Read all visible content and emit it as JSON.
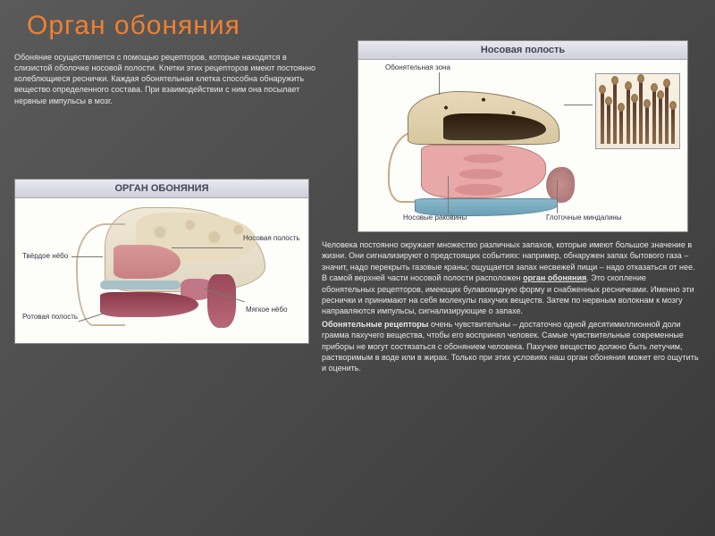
{
  "title": "Орган обоняния",
  "title_color": "#f08030",
  "intro": "Обоняние осуществляется с помощью рецепторов, которые находятся в слизистой оболочке носовой полости. Клетки этих рецепторов имеют постоянно колеблющиеся реснички. Каждая обонятельная клетка способна обнаружить вещество определенного состава. При взаимодействии с ним она посылает нервные импульсы в мозг.",
  "main_diagram": {
    "title": "Носовая полость",
    "labels": {
      "olfactory": "Обонятельная зона",
      "turbinates": "Носовые раковины",
      "tonsils": "Глоточные миндалины"
    }
  },
  "small_diagram": {
    "title": "ОРГАН ОБОНЯНИЯ",
    "labels": {
      "hard_palate": "Твёрдое нёбо",
      "nasal_cavity": "Носовая полость",
      "oral_cavity": "Ротовая полость",
      "soft_palate": "Мягкое нёбо"
    }
  },
  "body": {
    "p1a": "Человека постоянно окружает множество различных запахов, которые имеют большое значение в жизни. Они сигнализируют о предстоящих событиях: например, обнаружен запах бытового газа – значит, надо перекрыть газовые краны; ощущается запах несвежей пищи – надо отказаться от нее. В самой верхней части носовой полости расположен ",
    "organ_bold": "орган обоняния",
    "p1b": ". Это скопление обонятельных рецепторов, имеющих булавовидную форму и снабженных ресничками. Именно эти реснички и принимают на себя молекулы пахучих веществ. Затем по нервным волокнам к мозгу направляются импульсы, сигнализирующие о запахе.",
    "receptors_bold": "Обонятельные рецепторы",
    "p2": " очень чувствительны – достаточно одной десятимиллионной доли грамма пахучего вещества, чтобы его воспринял человек. Самые чувствительные современные приборы не могут состязаться с обонянием человека. Пахучее вещество должно быть летучим, растворимым в воде или в жирах. Только при этих условиях наш орган обоняния может его ощутить и оценить."
  },
  "cilia_heights": [
    58,
    45,
    68,
    38,
    62,
    48,
    70,
    42,
    60,
    52,
    65,
    40
  ]
}
